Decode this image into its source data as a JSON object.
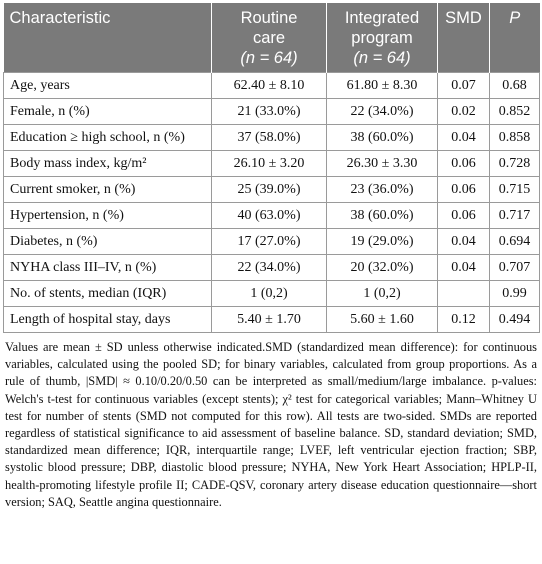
{
  "header": {
    "characteristic": "Characteristic",
    "routine_line1": "Routine",
    "routine_line2": "care",
    "routine_n": "(n = 64)",
    "integrated_line1": "Integrated",
    "integrated_line2": "program",
    "integrated_n": "(n = 64)",
    "smd": "SMD",
    "p": "P"
  },
  "rows": [
    {
      "char": "Age, years",
      "routine": "62.40 ± 8.10",
      "integrated": "61.80 ± 8.30",
      "smd": "0.07",
      "p": "0.68"
    },
    {
      "char": "Female, n (%)",
      "routine": "21 (33.0%)",
      "integrated": "22 (34.0%)",
      "smd": "0.02",
      "p": "0.852"
    },
    {
      "char": "Education ≥ high school, n (%)",
      "routine": "37 (58.0%)",
      "integrated": "38 (60.0%)",
      "smd": "0.04",
      "p": "0.858"
    },
    {
      "char": "Body mass index, kg/m²",
      "routine": "26.10 ± 3.20",
      "integrated": "26.30 ± 3.30",
      "smd": "0.06",
      "p": "0.728"
    },
    {
      "char": "Current smoker, n (%)",
      "routine": "25 (39.0%)",
      "integrated": "23 (36.0%)",
      "smd": "0.06",
      "p": "0.715"
    },
    {
      "char": "Hypertension, n (%)",
      "routine": "40 (63.0%)",
      "integrated": "38 (60.0%)",
      "smd": "0.06",
      "p": "0.717"
    },
    {
      "char": "Diabetes, n (%)",
      "routine": "17 (27.0%)",
      "integrated": "19 (29.0%)",
      "smd": "0.04",
      "p": "0.694"
    },
    {
      "char": "NYHA class III–IV, n (%)",
      "routine": "22 (34.0%)",
      "integrated": "20 (32.0%)",
      "smd": "0.04",
      "p": "0.707"
    },
    {
      "char": "No. of stents, median (IQR)",
      "routine": "1 (0,2)",
      "integrated": "1 (0,2)",
      "smd": "",
      "p": "0.99"
    },
    {
      "char": "Length of hospital stay, days",
      "routine": "5.40 ± 1.70",
      "integrated": "5.60 ± 1.60",
      "smd": "0.12",
      "p": "0.494"
    }
  ],
  "footnote": "Values are mean ± SD unless otherwise indicated.SMD (standardized mean difference): for continuous variables, calculated using the pooled SD; for binary variables, calculated from group proportions. As a rule of thumb, |SMD| ≈ 0.10/0.20/0.50 can be interpreted as small/medium/large imbalance. p-values: Welch's t-test for continuous variables (except stents); χ² test for categorical variables; Mann–Whitney U test for number of stents (SMD not computed for this row). All tests are two-sided. SMDs are reported regardless of statistical significance to aid assessment of baseline balance. SD, standard deviation; SMD, standardized mean difference; IQR, interquartile range; LVEF, left ventricular ejection fraction; SBP, systolic blood pressure; DBP, diastolic blood pressure; NYHA, New York Heart Association; HPLP-II, health-promoting lifestyle profile II; CADE-QSV, coronary artery disease education questionnaire—short version; SAQ, Seattle angina questionnaire."
}
